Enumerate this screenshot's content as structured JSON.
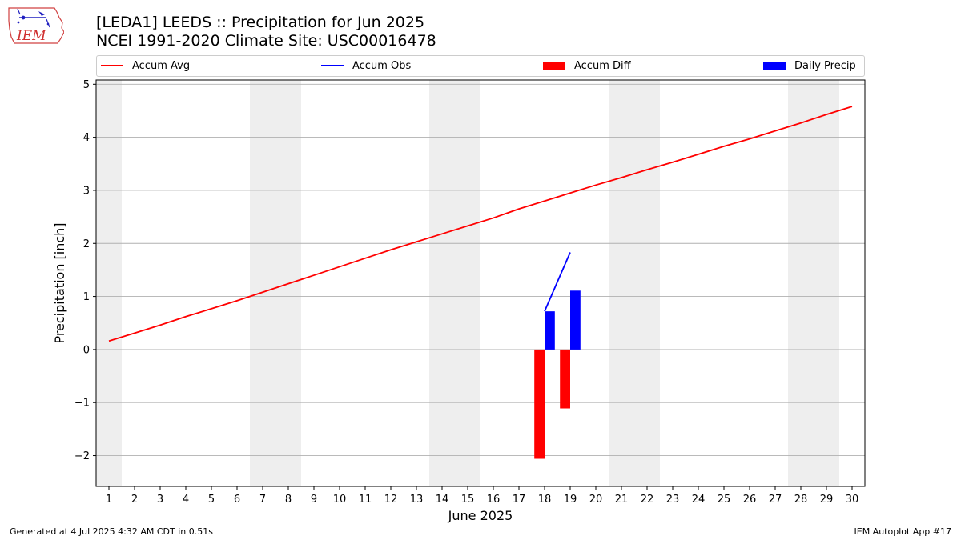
{
  "header": {
    "title_line1": "[LEDA1] LEEDS :: Precipitation for Jun 2025",
    "title_line2": "NCEI 1991-2020 Climate Site: USC00016478",
    "logo_text": "IEM"
  },
  "footer": {
    "left": "Generated at 4 Jul 2025 4:32 AM CDT in 0.51s",
    "right": "IEM Autoplot App #17"
  },
  "colors": {
    "accum_avg": "#ff0000",
    "accum_obs": "#0000ff",
    "accum_diff": "#ff0000",
    "daily_precip": "#0000ff",
    "weekend_shade": "#eeeeee",
    "grid": "#b0b0b0"
  },
  "chart_data": {
    "type": "bar",
    "xlabel": "June 2025",
    "ylabel": "Precipitation [inch]",
    "xlim": [
      0.5,
      30.5
    ],
    "ylim": [
      -2.58,
      5.08
    ],
    "grid": true,
    "legend_placement": "top",
    "x": [
      1,
      2,
      3,
      4,
      5,
      6,
      7,
      8,
      9,
      10,
      11,
      12,
      13,
      14,
      15,
      16,
      17,
      18,
      19,
      20,
      21,
      22,
      23,
      24,
      25,
      26,
      27,
      28,
      29,
      30
    ],
    "x_tick_labels": [
      "1",
      "2",
      "3",
      "4",
      "5",
      "6",
      "7",
      "8",
      "9",
      "10",
      "11",
      "12",
      "13",
      "14",
      "15",
      "16",
      "17",
      "18",
      "19",
      "20",
      "21",
      "22",
      "23",
      "24",
      "25",
      "26",
      "27",
      "28",
      "29",
      "30"
    ],
    "y_ticks": [
      -2,
      -1,
      0,
      1,
      2,
      3,
      4,
      5
    ],
    "y_tick_labels": [
      "−2",
      "−1",
      "0",
      "1",
      "2",
      "3",
      "4",
      "5"
    ],
    "weekend_shading": [
      [
        0.5,
        1.5
      ],
      [
        6.5,
        8.5
      ],
      [
        13.5,
        15.5
      ],
      [
        20.5,
        22.5
      ],
      [
        27.5,
        29.5
      ]
    ],
    "series": [
      {
        "name": "Accum Avg",
        "type": "line",
        "x": [
          1,
          2,
          3,
          4,
          5,
          6,
          7,
          8,
          9,
          10,
          11,
          12,
          13,
          14,
          15,
          16,
          17,
          18,
          19,
          20,
          21,
          22,
          23,
          24,
          25,
          26,
          27,
          28,
          29,
          30
        ],
        "values": [
          0.16,
          0.31,
          0.46,
          0.62,
          0.77,
          0.92,
          1.08,
          1.24,
          1.4,
          1.56,
          1.72,
          1.88,
          2.03,
          2.18,
          2.33,
          2.48,
          2.65,
          2.8,
          2.95,
          3.1,
          3.24,
          3.39,
          3.53,
          3.68,
          3.83,
          3.97,
          4.12,
          4.27,
          4.43,
          4.58
        ]
      },
      {
        "name": "Accum Obs",
        "type": "line",
        "x": [
          18,
          19
        ],
        "values": [
          0.72,
          1.83
        ]
      },
      {
        "name": "Accum Diff",
        "type": "bar",
        "offset": -0.2,
        "x": [
          18,
          19
        ],
        "values": [
          -2.06,
          -1.11
        ]
      },
      {
        "name": "Daily Precip",
        "type": "bar",
        "offset": 0.2,
        "x": [
          18,
          19
        ],
        "values": [
          0.72,
          1.11
        ]
      }
    ]
  }
}
